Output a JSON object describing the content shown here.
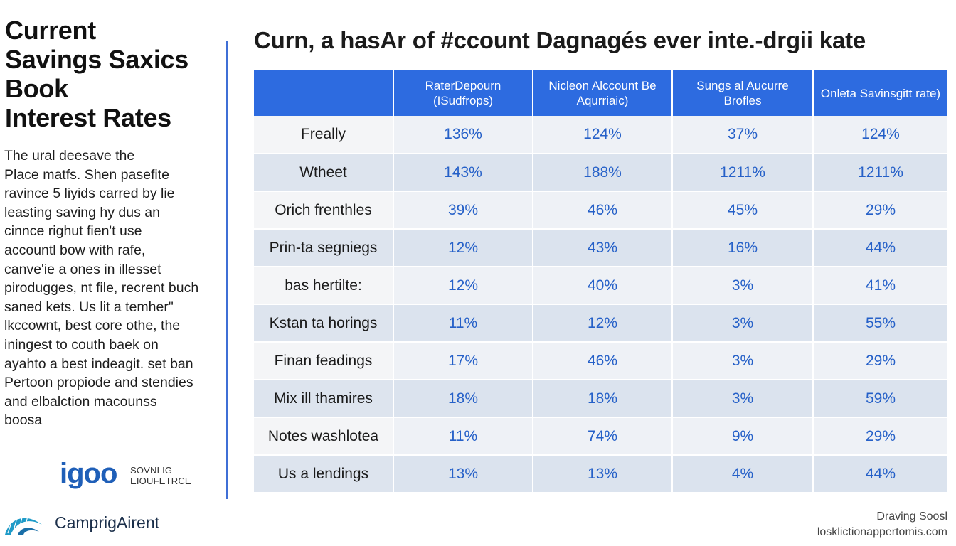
{
  "left": {
    "title_lines": [
      "Current",
      "Savings Saxics",
      "Book",
      "Interest Rates"
    ],
    "body_lines": [
      "The ural deesave the",
      "Place matfs.  Shen pasefite",
      "ravince  5 liyids carred by lie",
      "leasting saving hy dus an",
      "cinnce righut fien't use",
      "accountl bow with rafe,",
      "canve'ie a ones in illesset",
      "pirodugges, nt file, recrent buch",
      "saned kets. Us lit a temher\"",
      "lkccownt, best core othe, the",
      "iningest to couth baek on",
      "ayahto a best indeagit. set ban",
      "Pertoon propiode and stendies",
      "and elbalction macounss",
      "boosa"
    ],
    "brand": {
      "name": "igoo",
      "sub_lines": [
        "SOVNLIG",
        "EIOUFETRCE"
      ]
    },
    "logo_text": "CamprigAirent"
  },
  "main": {
    "title": "Curn, a hasAr of #ccount Dagnagés ever inte.-drgii kate",
    "table": {
      "headers": [
        "",
        "RaterDepourn (ISudfrops)",
        "Nicleon Alccount Be Aqurriaic)",
        "Sungs al Aucurre Brofles",
        "Onleta Savinsgitt rate)"
      ],
      "rows": [
        {
          "label": "Freally",
          "values": [
            "136%",
            "124%",
            "37%",
            "124%"
          ]
        },
        {
          "label": "Wtheet",
          "values": [
            "143%",
            "188%",
            "1211%",
            "1211%"
          ]
        },
        {
          "label": "Orich frenthles",
          "values": [
            "39%",
            "46%",
            "45%",
            "29%"
          ]
        },
        {
          "label": "Prin-ta segniegs",
          "values": [
            "12%",
            "43%",
            "16%",
            "44%"
          ]
        },
        {
          "label": "bas hertilte:",
          "values": [
            "12%",
            "40%",
            "3%",
            "41%"
          ]
        },
        {
          "label": "Kstan ta horings",
          "values": [
            "11%",
            "12%",
            "3%",
            "55%"
          ]
        },
        {
          "label": "Finan feadings",
          "values": [
            "17%",
            "46%",
            "3%",
            "29%"
          ]
        },
        {
          "label": "Mix ill thamires",
          "values": [
            "18%",
            "18%",
            "3%",
            "59%"
          ]
        },
        {
          "label": "Notes washlotea",
          "values": [
            "11%",
            "74%",
            "9%",
            "29%"
          ]
        },
        {
          "label": "Us a lendings",
          "values": [
            "13%",
            "13%",
            "4%",
            "44%"
          ]
        }
      ]
    }
  },
  "footer": {
    "line1": "Draving Soosl",
    "line2": "losklictionappertomis.com"
  },
  "colors": {
    "accent": "#2d6be0",
    "value_text": "#2560c8",
    "divider": "#3f6fd6"
  }
}
